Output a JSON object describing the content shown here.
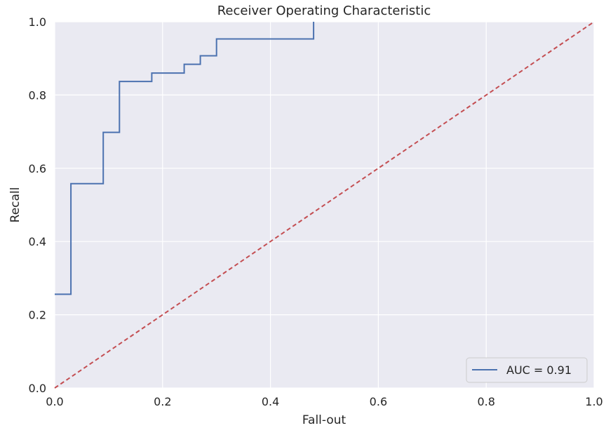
{
  "chart_data": {
    "type": "line",
    "title": "Receiver Operating Characteristic",
    "xlabel": "Fall-out",
    "ylabel": "Recall",
    "xlim": [
      0.0,
      1.0
    ],
    "ylim": [
      0.0,
      1.0
    ],
    "xticks": [
      "0.0",
      "0.2",
      "0.4",
      "0.6",
      "0.8",
      "1.0"
    ],
    "yticks": [
      "0.0",
      "0.2",
      "0.4",
      "0.6",
      "0.8",
      "1.0"
    ],
    "grid": true,
    "legend_position": "lower-right",
    "series": [
      {
        "name": "AUC = 0.91",
        "color": "#4c72b0",
        "style": "solid",
        "x": [
          0.0,
          0.03,
          0.03,
          0.09,
          0.09,
          0.12,
          0.12,
          0.18,
          0.18,
          0.24,
          0.24,
          0.27,
          0.27,
          0.3,
          0.3,
          0.48,
          0.48
        ],
        "y": [
          0.256,
          0.256,
          0.558,
          0.558,
          0.698,
          0.698,
          0.837,
          0.837,
          0.86,
          0.86,
          0.884,
          0.884,
          0.907,
          0.907,
          0.953,
          0.953,
          1.0
        ]
      },
      {
        "name": "",
        "color": "#c44e52",
        "style": "dashed",
        "x": [
          0.0,
          1.0
        ],
        "y": [
          0.0,
          1.0
        ]
      }
    ],
    "colors": {
      "plot_background": "#eaeaf2",
      "grid": "#ffffff"
    }
  }
}
